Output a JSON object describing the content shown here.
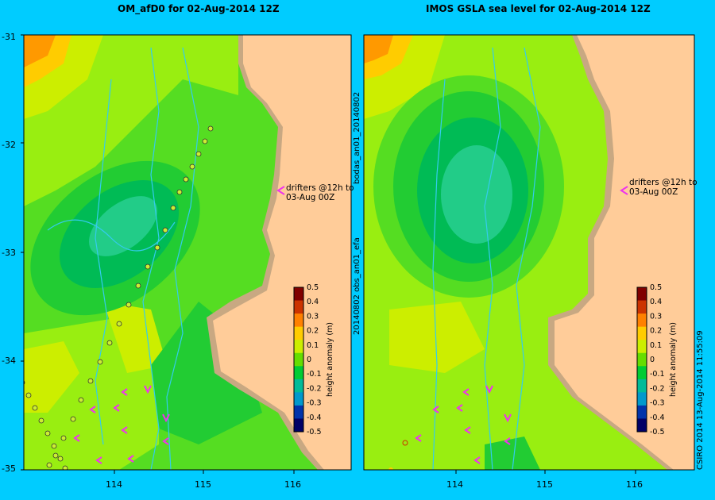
{
  "panels": [
    {
      "title": "OM_afD0 for 02-Aug-2014 12Z"
    },
    {
      "title": "IMOS GSLA sea level  for 02-Aug-2014 12Z"
    }
  ],
  "lat_ticks": [
    "-31",
    "-32",
    "-33",
    "-34",
    "-35"
  ],
  "lon_ticks": [
    "114",
    "115",
    "116"
  ],
  "annotation": {
    "line1": "drifters @12h to",
    "line2": "03-Aug 00Z"
  },
  "colorbar": {
    "label": "height anomaly (m)",
    "ticks": [
      "0.5",
      "0.4",
      "0.3",
      "0.2",
      "0.1",
      "0",
      "-0.1",
      "-0.2",
      "-0.3",
      "-0.4",
      "-0.5"
    ],
    "colors": [
      "#800000",
      "#cc3300",
      "#ff8000",
      "#ffcc00",
      "#ccee00",
      "#66dd00",
      "#00cc33",
      "#00bb99",
      "#0099cc",
      "#0033aa",
      "#000066"
    ]
  },
  "side_texts": {
    "left_top": "bodas_an01_20140802",
    "left_bottom": "20140802 obs_an01_efa",
    "right": "CSIRO 2014   13-Aug-2014 11:55:09"
  },
  "colors": {
    "background": "#00ccff",
    "land": "#ffcc99",
    "coast": "#c8a882",
    "ocean": "#55dd22",
    "track": "#ccee33",
    "arrow": "#ee33ee"
  }
}
